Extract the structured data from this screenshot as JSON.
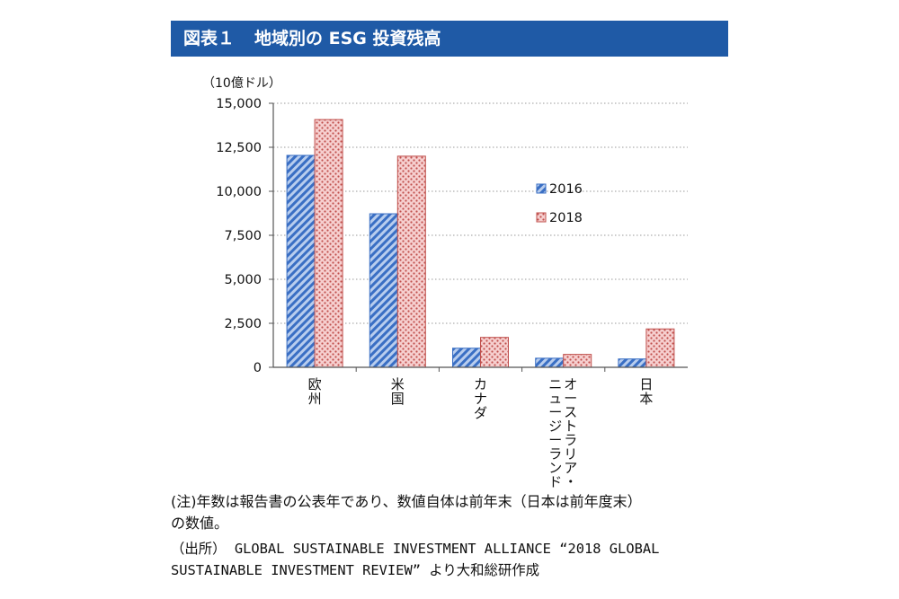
{
  "header": {
    "figure_number": "図表１",
    "title": "地域別の ESG 投資残高"
  },
  "chart_data": {
    "type": "bar",
    "unit_label": "（10億ドル）",
    "categories": [
      "欧州",
      "米国",
      "カナダ",
      "オーストラリア・ニュージーランド",
      "日本"
    ],
    "series": [
      {
        "name": "2016",
        "values": [
          12040,
          8723,
          1086,
          516,
          474
        ],
        "color": "#3a6fc4",
        "fill": "#a9c4ea"
      },
      {
        "name": "2018",
        "values": [
          14075,
          11995,
          1699,
          734,
          2180
        ],
        "color": "#c0504d",
        "fill": "#f3c0c0"
      }
    ],
    "ylim": [
      0,
      15000
    ],
    "yticks": [
      "0",
      "2,500",
      "5,000",
      "7,500",
      "10,000",
      "12,500",
      "15,000"
    ],
    "grid": true,
    "legend_position": "inside-right"
  },
  "notes": {
    "line1": "(注)年数は報告書の公表年であり、数値自体は前年末（日本は前年度末）",
    "line2": "の数値。",
    "line3": "（出所） GLOBAL SUSTAINABLE INVESTMENT ALLIANCE “2018 GLOBAL",
    "line4": "SUSTAINABLE INVESTMENT REVIEW” より大和総研作成"
  }
}
